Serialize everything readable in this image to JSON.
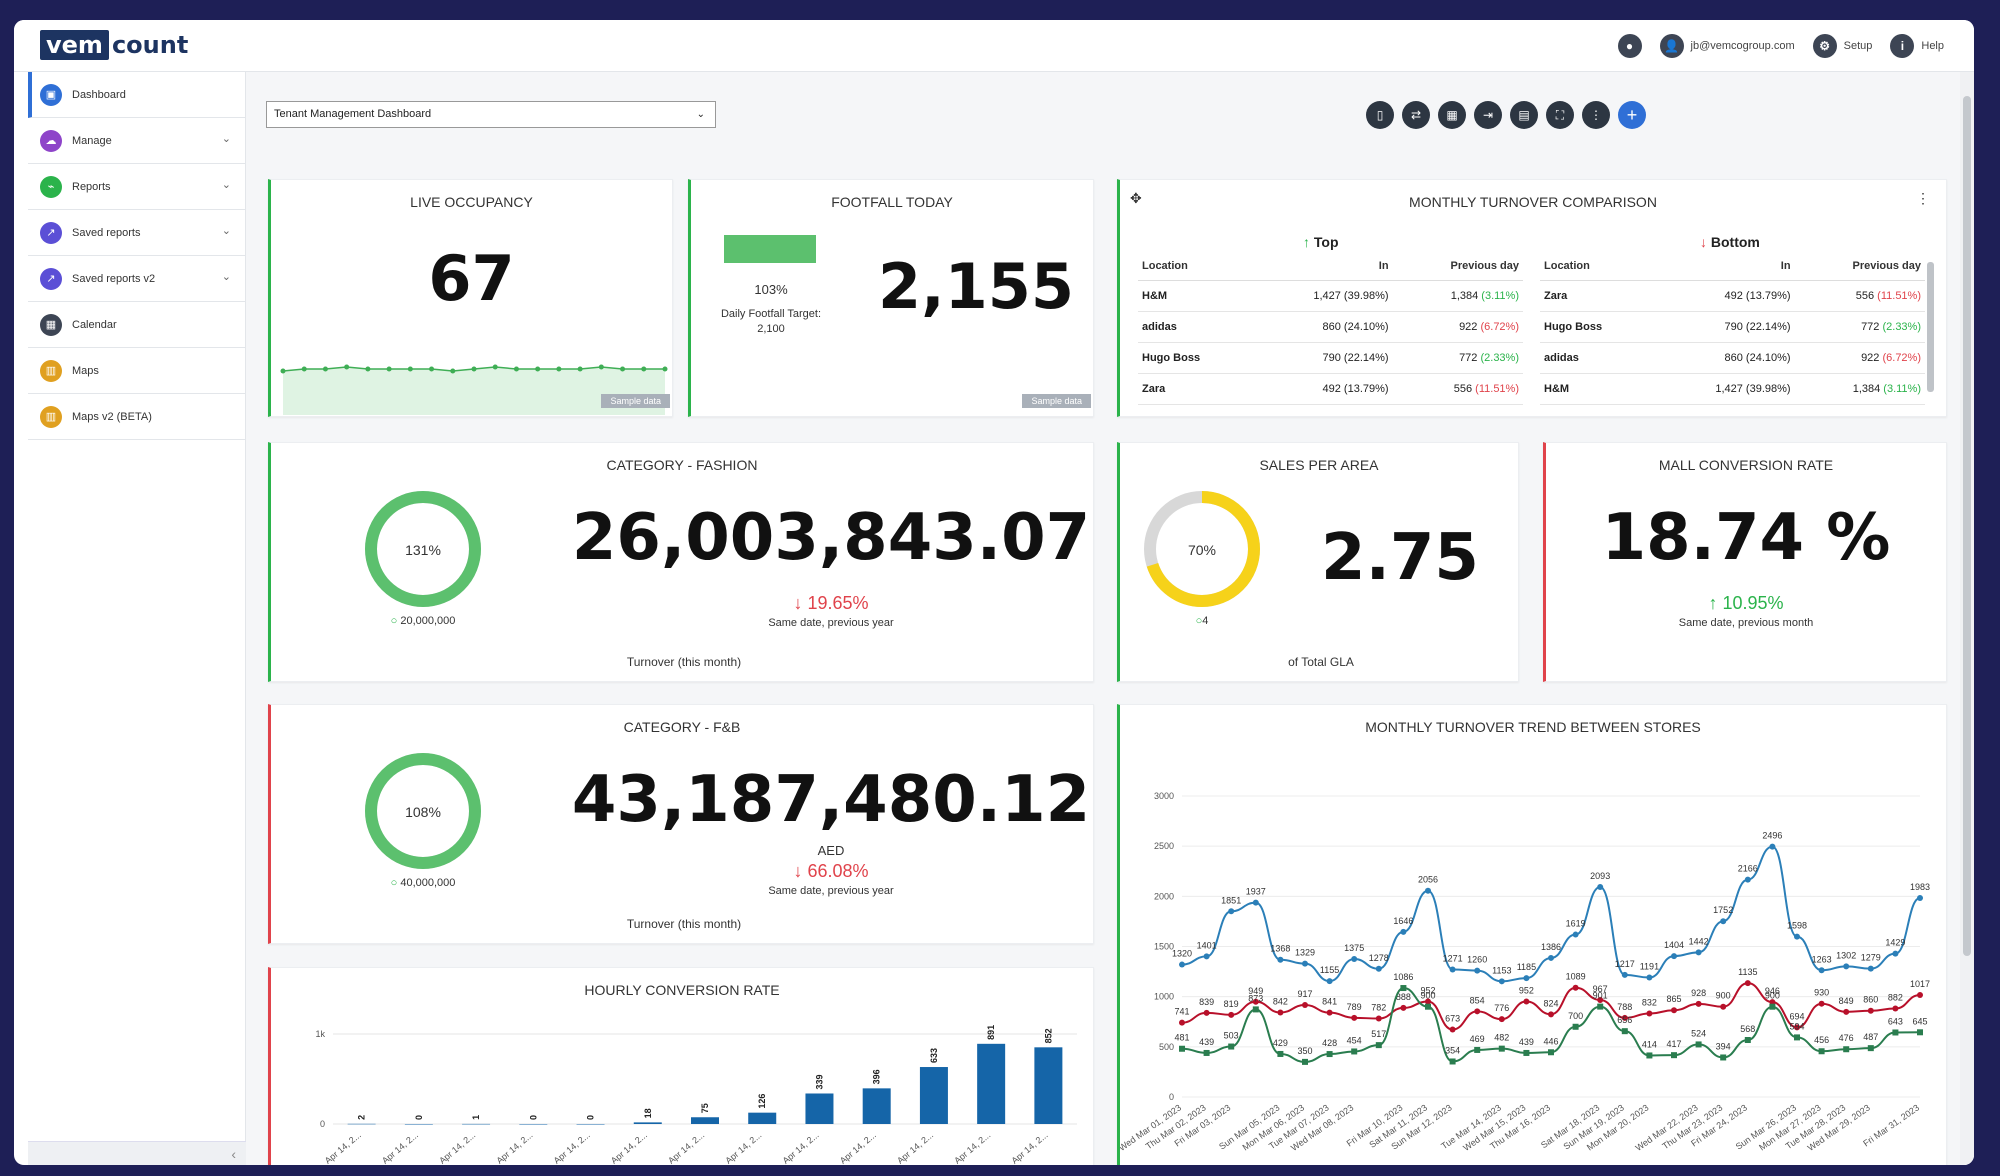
{
  "app": {
    "logo_part1": "vem",
    "logo_part2": "count"
  },
  "topbar": {
    "user_email": "jb@vemcogroup.com",
    "setup_label": "Setup",
    "help_label": "Help"
  },
  "sidebar": {
    "items": [
      {
        "label": "Dashboard",
        "color": "#2f6fd6",
        "icon": "dashboard-icon"
      },
      {
        "label": "Manage",
        "color": "#8e44c9",
        "icon": "cloud-icon"
      },
      {
        "label": "Reports",
        "color": "#2bb34b",
        "icon": "chart-icon"
      },
      {
        "label": "Saved reports",
        "color": "#5b4fd6",
        "icon": "share-icon"
      },
      {
        "label": "Saved reports v2",
        "color": "#5b4fd6",
        "icon": "share-icon"
      },
      {
        "label": "Calendar",
        "color": "#3d4554",
        "icon": "calendar-icon"
      },
      {
        "label": "Maps",
        "color": "#e0a020",
        "icon": "map-icon"
      },
      {
        "label": "Maps v2 (BETA)",
        "color": "#e0a020",
        "icon": "map-icon"
      }
    ]
  },
  "dashboard_select": {
    "value": "Tenant Management Dashboard"
  },
  "live_occupancy": {
    "title": "LIVE OCCUPANCY",
    "value": "67",
    "sample": "Sample data",
    "sparkline": [
      66,
      67,
      67,
      68,
      67,
      67,
      67,
      67,
      66,
      67,
      68,
      67,
      67,
      67,
      67,
      68,
      67,
      67,
      67
    ]
  },
  "footfall_today": {
    "title": "FOOTFALL TODAY",
    "value": "2,155",
    "pct": "103%",
    "target_label": "Daily Footfall Target:",
    "target_value": "2,100",
    "sample": "Sample data",
    "progress": 1.03
  },
  "monthly_turnover": {
    "title": "MONTHLY TURNOVER COMPARISON",
    "top_label": "Top",
    "bottom_label": "Bottom",
    "headers": [
      "Location",
      "In",
      "Previous day"
    ],
    "top": [
      {
        "loc": "H&M",
        "in": "1,427 (39.98%)",
        "prev": "1,384",
        "prev_pct": "(3.11%)",
        "dir": "up"
      },
      {
        "loc": "adidas",
        "in": "860 (24.10%)",
        "prev": "922",
        "prev_pct": "(6.72%)",
        "dir": "down"
      },
      {
        "loc": "Hugo Boss",
        "in": "790 (22.14%)",
        "prev": "772",
        "prev_pct": "(2.33%)",
        "dir": "up"
      },
      {
        "loc": "Zara",
        "in": "492 (13.79%)",
        "prev": "556",
        "prev_pct": "(11.51%)",
        "dir": "down"
      }
    ],
    "bottom": [
      {
        "loc": "Zara",
        "in": "492 (13.79%)",
        "prev": "556",
        "prev_pct": "(11.51%)",
        "dir": "down"
      },
      {
        "loc": "Hugo Boss",
        "in": "790 (22.14%)",
        "prev": "772",
        "prev_pct": "(2.33%)",
        "dir": "up"
      },
      {
        "loc": "adidas",
        "in": "860 (24.10%)",
        "prev": "922",
        "prev_pct": "(6.72%)",
        "dir": "down"
      },
      {
        "loc": "H&M",
        "in": "1,427 (39.98%)",
        "prev": "1,384",
        "prev_pct": "(3.11%)",
        "dir": "up"
      }
    ]
  },
  "fashion": {
    "title": "CATEGORY - FASHION",
    "value": "26,003,843.07",
    "ring_pct": "131%",
    "ring_fraction": 1.0,
    "target": "20,000,000",
    "delta": "19.65%",
    "delta_note": "Same date, previous year",
    "footer": "Turnover (this month)"
  },
  "sales_per_area": {
    "title": "SALES PER AREA",
    "value": "2.75",
    "ring_pct": "70%",
    "ring_fraction": 0.7,
    "target": "4",
    "footer": "of Total GLA"
  },
  "mall_conversion": {
    "title": "MALL CONVERSION RATE",
    "value": "18.74 %",
    "delta": "10.95%",
    "delta_note": "Same date, previous month"
  },
  "fnb": {
    "title": "CATEGORY - F&B",
    "value": "43,187,480.12",
    "currency": "AED",
    "ring_pct": "108%",
    "ring_fraction": 1.0,
    "target": "40,000,000",
    "delta": "66.08%",
    "delta_note": "Same date, previous year",
    "footer": "Turnover (this month)"
  },
  "hourly_conversion": {
    "title": "HOURLY CONVERSION RATE"
  },
  "turnover_trend": {
    "title": "MONTHLY TURNOVER TREND BETWEEN STORES"
  },
  "chart_data": [
    {
      "type": "bar",
      "title": "HOURLY CONVERSION RATE",
      "ylabel": "",
      "yticks": [
        "0",
        "1k"
      ],
      "ylim": [
        0,
        1000
      ],
      "categories": [
        "Apr 14, 2...",
        "Apr 14, 2...",
        "Apr 14, 2...",
        "Apr 14, 2...",
        "Apr 14, 2...",
        "Apr 14, 2...",
        "Apr 14, 2...",
        "Apr 14, 2...",
        "Apr 14, 2...",
        "Apr 14, 2...",
        "Apr 14, 2...",
        "Apr 14, 2...",
        "Apr 14, 2..."
      ],
      "values": [
        2,
        0,
        1,
        0,
        0,
        18,
        75,
        126,
        339,
        396,
        633,
        891,
        852
      ],
      "color": "#1565a8"
    },
    {
      "type": "line",
      "title": "MONTHLY TURNOVER TREND BETWEEN STORES",
      "ylabel": "",
      "yticks": [
        "0",
        "500",
        "1000",
        "1500",
        "2000",
        "2500",
        "3000"
      ],
      "ylim": [
        0,
        3000
      ],
      "x": [
        "Wed Mar 01, 2023",
        "Thu Mar 02, 2023",
        "Fri Mar 03, 2023",
        "Sat Mar 04, 2023",
        "Sun Mar 05, 2023",
        "Mon Mar 06, 2023",
        "Tue Mar 07, 2023",
        "Wed Mar 08, 2023",
        "Thu Mar 09, 2023",
        "Fri Mar 10, 2023",
        "Sat Mar 11, 2023",
        "Sun Mar 12, 2023",
        "Mon Mar 13, 2023",
        "Tue Mar 14, 2023",
        "Wed Mar 15, 2023",
        "Thu Mar 16, 2023",
        "Fri Mar 17, 2023",
        "Sat Mar 18, 2023",
        "Sun Mar 19, 2023",
        "Mon Mar 20, 2023",
        "Tue Mar 21, 2023",
        "Wed Mar 22, 2023",
        "Thu Mar 23, 2023",
        "Fri Mar 24, 2023",
        "Sat Mar 25, 2023",
        "Sun Mar 26, 2023",
        "Mon Mar 27, 2023",
        "Tue Mar 28, 2023",
        "Wed Mar 29, 2023",
        "Thu Mar 30, 2023",
        "Fri Mar 31, 2023"
      ],
      "x_tick_labels": [
        "Wed Mar 01, 2023",
        "Thu Mar 02, 2023",
        "Fri Mar 03, 2023",
        "Sun Mar 05, 2023",
        "Mon Mar 06, 2023",
        "Tue Mar 07, 2023",
        "Wed Mar 08, 2023",
        "Fri Mar 10, 2023",
        "Sat Mar 11, 2023",
        "Sun Mar 12, 2023",
        "Tue Mar 14, 2023",
        "Wed Mar 15, 2023",
        "Thu Mar 16, 2023",
        "Sat Mar 18, 2023",
        "Sun Mar 19, 2023",
        "Mon Mar 20, 2023",
        "Wed Mar 22, 2023",
        "Thu Mar 23, 2023",
        "Fri Mar 24, 2023",
        "Sun Mar 26, 2023",
        "Mon Mar 27, 2023",
        "Tue Mar 28, 2023",
        "Wed Mar 29, 2023",
        "Fri Mar 31, 2023"
      ],
      "series": [
        {
          "color": "#2b7fb8",
          "values": [
            1320,
            1401,
            1851,
            1937,
            1368,
            1329,
            1155,
            1375,
            1278,
            1646,
            2056,
            1271,
            1260,
            1153,
            1185,
            1386,
            1619,
            2093,
            1217,
            1191,
            1404,
            1442,
            1752,
            2166,
            2496,
            1598,
            1263,
            1302,
            1279,
            1429,
            1983
          ]
        },
        {
          "color": "#b8102a",
          "values": [
            741,
            839,
            819,
            949,
            842,
            917,
            841,
            789,
            782,
            888,
            952,
            673,
            854,
            776,
            952,
            824,
            1089,
            967,
            788,
            832,
            865,
            928,
            900,
            1135,
            946,
            694,
            930,
            849,
            860,
            882,
            1017
          ]
        },
        {
          "color": "#2a7d4f",
          "values": [
            481,
            439,
            503,
            873,
            429,
            350,
            428,
            454,
            517,
            1086,
            900,
            354,
            469,
            482,
            439,
            446,
            700,
            901,
            656,
            414,
            417,
            524,
            394,
            568,
            900,
            594,
            456,
            476,
            487,
            643,
            645
          ]
        }
      ]
    }
  ]
}
